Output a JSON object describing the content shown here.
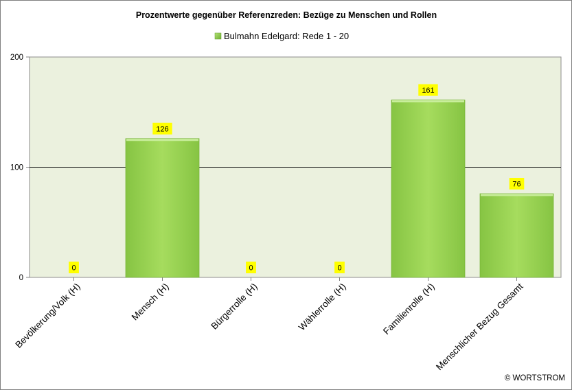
{
  "chart_data": {
    "type": "bar",
    "title": "Prozentwerte gegenüber Referenzreden:  Bezüge zu Menschen und Rollen",
    "categories": [
      "Bevölkerung/Volk (H)",
      "Mensch (H)",
      "Bürgerrolle (H)",
      "Wählerrolle (H)",
      "Familienrolle (H)",
      "Menschlicher Bezug Gesamt"
    ],
    "series": [
      {
        "name": "Bulmahn Edelgard: Rede 1 - 20",
        "values": [
          0,
          126,
          0,
          0,
          161,
          76
        ]
      }
    ],
    "ylim": [
      0,
      200
    ],
    "yticks": [
      0,
      100,
      200
    ],
    "reference_line": 100,
    "legend_position": "top-center",
    "colors": {
      "bar": "#92d050",
      "bar_light": "#b4e27a",
      "plot_background": "#ebf1de",
      "label_background": "#ffff00",
      "text": "#000000"
    }
  },
  "copyright": "© WORTSTROM"
}
